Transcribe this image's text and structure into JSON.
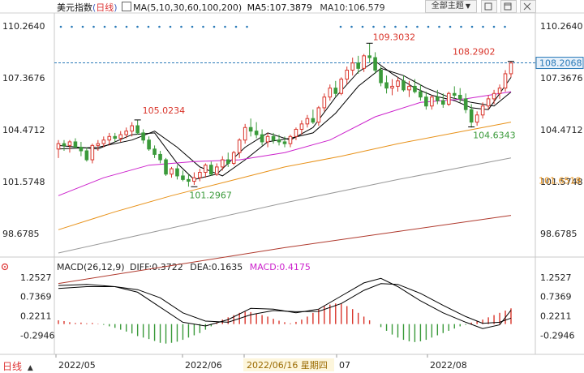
{
  "header": {
    "title": "美元指数",
    "period": "日线",
    "ma_settings": "MA(5,10,30,60,100,200)",
    "ma5_label": "MA5:107.3879",
    "ma10_label": "MA10:106.579",
    "theme_button": "全部主题",
    "theme_arrow": "▼"
  },
  "macd_header": {
    "settings": "MACD(26,12,9)",
    "diff": "DIFF:0.3722",
    "dea": "DEA:0.1635",
    "macd": "MACD:0.4175"
  },
  "bottom": {
    "tab_label": "日线",
    "tab_arrow": "▲",
    "x_labels": [
      "2022/05",
      "2022/06",
      "2022/06/16 星期四",
      "07",
      "2022/08"
    ]
  },
  "price_axis": {
    "left_ticks": [
      "110.2640",
      "107.3676",
      "104.4712",
      "101.5748",
      "98.6785"
    ],
    "right_ticks": [
      "110.2640",
      "107.3676",
      "104.4712",
      "101.5748",
      "98.6785"
    ],
    "current_price": "108.2068",
    "ma_tag": "101.6518"
  },
  "macd_axis": {
    "left_ticks": [
      "1.2527",
      "0.7369",
      "0.2211",
      "-0.2946"
    ],
    "right_ticks": [
      "1.2527",
      "0.7369",
      "0.2211",
      "-0.2946"
    ]
  },
  "annotations": [
    {
      "text": "105.0234",
      "color": "#d9352b"
    },
    {
      "text": "101.2967",
      "color": "#3a9a3a"
    },
    {
      "text": "109.3032",
      "color": "#d9352b"
    },
    {
      "text": "108.2902",
      "color": "#d9352b"
    },
    {
      "text": "104.6343",
      "color": "#3a9a3a"
    }
  ],
  "colors": {
    "up": "#d9352b",
    "down": "#3a9a3a",
    "ma5": "#000000",
    "ma10": "#000000",
    "ma30": "#cc22cc",
    "ma60": "#e8921a",
    "ma100": "#999999",
    "ma200": "#b03a2e",
    "diff": "#000000",
    "dea": "#000000"
  },
  "chart_data": {
    "type": "candlestick",
    "title": "美元指数",
    "ylim": [
      97.6,
      110.9
    ],
    "candles": [
      [
        103.4,
        103.9,
        102.9,
        103.7
      ],
      [
        103.7,
        103.9,
        103.3,
        103.6
      ],
      [
        103.6,
        103.9,
        103.2,
        103.8
      ],
      [
        103.8,
        104.0,
        103.5,
        103.5
      ],
      [
        103.5,
        103.8,
        103.0,
        103.3
      ],
      [
        103.3,
        103.5,
        102.7,
        102.8
      ],
      [
        102.8,
        103.7,
        102.6,
        103.6
      ],
      [
        103.6,
        103.9,
        103.3,
        103.7
      ],
      [
        103.7,
        104.1,
        103.5,
        103.9
      ],
      [
        103.9,
        104.3,
        103.6,
        104.1
      ],
      [
        104.1,
        104.3,
        103.8,
        104.0
      ],
      [
        104.0,
        104.4,
        103.8,
        104.2
      ],
      [
        104.2,
        104.6,
        104.0,
        104.4
      ],
      [
        104.4,
        104.9,
        104.1,
        104.7
      ],
      [
        104.7,
        105.0,
        104.2,
        104.3
      ],
      [
        104.3,
        104.5,
        103.7,
        103.9
      ],
      [
        103.9,
        104.1,
        103.3,
        103.4
      ],
      [
        103.4,
        103.6,
        102.9,
        103.1
      ],
      [
        103.1,
        103.3,
        102.6,
        102.8
      ],
      [
        102.8,
        102.9,
        101.9,
        102.0
      ],
      [
        102.0,
        102.4,
        101.8,
        102.3
      ],
      [
        102.3,
        102.5,
        101.7,
        101.9
      ],
      [
        101.9,
        102.2,
        101.6,
        101.7
      ],
      [
        101.7,
        102.0,
        101.3,
        101.6
      ],
      [
        101.6,
        102.1,
        101.4,
        101.8
      ],
      [
        101.8,
        102.3,
        101.6,
        102.1
      ],
      [
        102.1,
        102.6,
        101.8,
        102.5
      ],
      [
        102.5,
        102.7,
        101.9,
        102.0
      ],
      [
        102.0,
        102.6,
        101.9,
        102.4
      ],
      [
        102.4,
        103.0,
        102.2,
        102.8
      ],
      [
        102.8,
        103.2,
        102.4,
        102.6
      ],
      [
        102.6,
        103.3,
        102.5,
        103.2
      ],
      [
        103.2,
        104.0,
        102.9,
        103.9
      ],
      [
        103.9,
        104.8,
        103.7,
        104.6
      ],
      [
        104.6,
        105.1,
        104.1,
        104.4
      ],
      [
        104.4,
        104.9,
        104.0,
        104.2
      ],
      [
        104.2,
        104.5,
        103.6,
        103.8
      ],
      [
        103.8,
        104.3,
        103.5,
        104.1
      ],
      [
        104.1,
        104.3,
        103.7,
        103.9
      ],
      [
        103.9,
        104.2,
        103.6,
        103.8
      ],
      [
        103.8,
        104.1,
        103.5,
        103.7
      ],
      [
        103.7,
        104.2,
        103.5,
        104.1
      ],
      [
        104.1,
        104.6,
        103.9,
        104.5
      ],
      [
        104.5,
        105.0,
        104.2,
        104.8
      ],
      [
        104.8,
        105.3,
        104.6,
        105.1
      ],
      [
        105.1,
        105.6,
        104.8,
        104.9
      ],
      [
        104.9,
        105.8,
        104.7,
        105.7
      ],
      [
        105.7,
        106.5,
        105.5,
        106.3
      ],
      [
        106.3,
        107.0,
        106.1,
        106.8
      ],
      [
        106.8,
        107.2,
        106.3,
        106.5
      ],
      [
        106.5,
        107.4,
        106.4,
        107.3
      ],
      [
        107.3,
        108.0,
        107.0,
        107.8
      ],
      [
        107.8,
        108.5,
        107.5,
        108.2
      ],
      [
        108.2,
        108.6,
        107.6,
        107.9
      ],
      [
        107.9,
        108.7,
        107.7,
        108.6
      ],
      [
        108.6,
        109.3,
        108.2,
        108.5
      ],
      [
        108.5,
        108.8,
        107.6,
        107.8
      ],
      [
        107.8,
        108.0,
        106.9,
        107.1
      ],
      [
        107.1,
        107.5,
        106.5,
        106.8
      ],
      [
        106.8,
        107.3,
        106.4,
        106.9
      ],
      [
        106.9,
        107.4,
        106.6,
        107.2
      ],
      [
        107.2,
        107.5,
        106.6,
        106.7
      ],
      [
        106.7,
        107.2,
        106.3,
        106.9
      ],
      [
        106.9,
        107.3,
        106.5,
        106.6
      ],
      [
        106.6,
        107.0,
        106.1,
        106.3
      ],
      [
        106.3,
        106.6,
        105.6,
        105.8
      ],
      [
        105.8,
        106.4,
        105.6,
        106.3
      ],
      [
        106.3,
        106.7,
        105.9,
        106.1
      ],
      [
        106.1,
        106.5,
        105.7,
        105.9
      ],
      [
        105.9,
        106.6,
        105.8,
        106.5
      ],
      [
        106.5,
        106.9,
        106.2,
        106.4
      ],
      [
        106.4,
        106.8,
        106.0,
        106.2
      ],
      [
        106.2,
        106.5,
        105.4,
        105.6
      ],
      [
        105.6,
        105.9,
        104.6,
        104.9
      ],
      [
        104.9,
        105.5,
        104.7,
        105.3
      ],
      [
        105.3,
        106.0,
        105.1,
        105.8
      ],
      [
        105.8,
        106.4,
        105.6,
        106.2
      ],
      [
        106.2,
        106.7,
        105.9,
        106.5
      ],
      [
        106.5,
        107.0,
        106.2,
        106.8
      ],
      [
        106.8,
        107.8,
        106.6,
        107.6
      ],
      [
        107.6,
        108.3,
        107.4,
        108.2
      ]
    ],
    "ma_series": [
      {
        "name": "MA5",
        "value": "107.3879",
        "path": [
          [
            0,
            103.6
          ],
          [
            7,
            103.4
          ],
          [
            13,
            104.2
          ],
          [
            17,
            104.3
          ],
          [
            21,
            102.6
          ],
          [
            24,
            101.7
          ],
          [
            28,
            102.0
          ],
          [
            33,
            103.5
          ],
          [
            37,
            104.3
          ],
          [
            41,
            103.9
          ],
          [
            45,
            104.6
          ],
          [
            49,
            106.3
          ],
          [
            53,
            107.7
          ],
          [
            56,
            108.3
          ],
          [
            59,
            107.6
          ],
          [
            63,
            106.8
          ],
          [
            66,
            106.4
          ],
          [
            70,
            106.1
          ],
          [
            73,
            105.7
          ],
          [
            76,
            105.6
          ],
          [
            80,
            107.4
          ]
        ]
      },
      {
        "name": "MA10",
        "value": "106.579",
        "path": [
          [
            0,
            103.4
          ],
          [
            7,
            103.5
          ],
          [
            13,
            103.9
          ],
          [
            17,
            104.4
          ],
          [
            21,
            103.5
          ],
          [
            25,
            102.4
          ],
          [
            29,
            101.9
          ],
          [
            33,
            102.8
          ],
          [
            37,
            103.8
          ],
          [
            41,
            104.0
          ],
          [
            45,
            104.3
          ],
          [
            49,
            105.4
          ],
          [
            53,
            106.9
          ],
          [
            57,
            107.9
          ],
          [
            61,
            107.5
          ],
          [
            65,
            106.8
          ],
          [
            69,
            106.3
          ],
          [
            73,
            106.0
          ],
          [
            77,
            105.8
          ],
          [
            80,
            106.58
          ]
        ]
      },
      {
        "name": "MA30",
        "path": [
          [
            0,
            100.8
          ],
          [
            8,
            101.8
          ],
          [
            16,
            102.5
          ],
          [
            24,
            102.7
          ],
          [
            32,
            102.8
          ],
          [
            40,
            103.2
          ],
          [
            48,
            103.9
          ],
          [
            56,
            105.2
          ],
          [
            64,
            106.0
          ],
          [
            72,
            106.2
          ],
          [
            80,
            106.6
          ]
        ]
      },
      {
        "name": "MA60",
        "path": [
          [
            0,
            98.9
          ],
          [
            10,
            99.9
          ],
          [
            20,
            100.8
          ],
          [
            30,
            101.6
          ],
          [
            40,
            102.4
          ],
          [
            50,
            103.0
          ],
          [
            60,
            103.7
          ],
          [
            70,
            104.3
          ],
          [
            80,
            104.9
          ]
        ]
      },
      {
        "name": "MA100",
        "path": [
          [
            0,
            97.6
          ],
          [
            20,
            99.0
          ],
          [
            40,
            100.4
          ],
          [
            60,
            101.7
          ],
          [
            80,
            102.9
          ]
        ]
      },
      {
        "name": "MA200",
        "value": "101.6518",
        "path": [
          [
            0,
            95.9
          ],
          [
            20,
            96.9
          ],
          [
            40,
            97.9
          ],
          [
            60,
            98.8
          ],
          [
            80,
            99.7
          ]
        ]
      }
    ],
    "macd": {
      "ylim": [
        -0.7,
        1.4
      ],
      "diff": [
        [
          0,
          1.03
        ],
        [
          5,
          1.06
        ],
        [
          10,
          1.0
        ],
        [
          14,
          0.85
        ],
        [
          18,
          0.45
        ],
        [
          22,
          0.05
        ],
        [
          26,
          -0.05
        ],
        [
          30,
          0.12
        ],
        [
          34,
          0.42
        ],
        [
          38,
          0.4
        ],
        [
          42,
          0.3
        ],
        [
          46,
          0.4
        ],
        [
          50,
          0.75
        ],
        [
          54,
          1.1
        ],
        [
          57,
          1.22
        ],
        [
          60,
          1.0
        ],
        [
          64,
          0.62
        ],
        [
          68,
          0.3
        ],
        [
          72,
          0.05
        ],
        [
          75,
          -0.12
        ],
        [
          78,
          -0.02
        ],
        [
          80,
          0.37
        ]
      ],
      "dea": [
        [
          0,
          0.95
        ],
        [
          5,
          1.0
        ],
        [
          10,
          1.0
        ],
        [
          14,
          0.92
        ],
        [
          18,
          0.7
        ],
        [
          22,
          0.3
        ],
        [
          26,
          0.08
        ],
        [
          30,
          0.05
        ],
        [
          34,
          0.25
        ],
        [
          38,
          0.36
        ],
        [
          42,
          0.33
        ],
        [
          46,
          0.34
        ],
        [
          50,
          0.55
        ],
        [
          54,
          0.9
        ],
        [
          57,
          1.08
        ],
        [
          60,
          1.06
        ],
        [
          64,
          0.82
        ],
        [
          68,
          0.5
        ],
        [
          72,
          0.2
        ],
        [
          75,
          0.02
        ],
        [
          78,
          0.05
        ],
        [
          80,
          0.16
        ]
      ],
      "hist": [
        0.1,
        0.08,
        0.05,
        0.03,
        0.04,
        0.02,
        0.03,
        0.01,
        -0.02,
        -0.06,
        -0.1,
        -0.15,
        -0.2,
        -0.25,
        -0.32,
        -0.36,
        -0.4,
        -0.45,
        -0.5,
        -0.52,
        -0.5,
        -0.47,
        -0.42,
        -0.36,
        -0.3,
        -0.24,
        -0.15,
        -0.06,
        0.05,
        0.12,
        0.18,
        0.24,
        0.3,
        0.33,
        0.32,
        0.28,
        0.24,
        0.2,
        0.14,
        0.09,
        0.05,
        0.02,
        0.06,
        0.12,
        0.2,
        0.3,
        0.4,
        0.48,
        0.52,
        0.55,
        0.54,
        0.48,
        0.4,
        0.3,
        0.2,
        0.1,
        0.0,
        -0.08,
        -0.18,
        -0.28,
        -0.36,
        -0.42,
        -0.46,
        -0.48,
        -0.46,
        -0.42,
        -0.36,
        -0.3,
        -0.24,
        -0.18,
        -0.12,
        -0.06,
        -0.02,
        0.04,
        0.08,
        0.12,
        0.18,
        0.24,
        0.3,
        0.36,
        0.42
      ]
    }
  }
}
